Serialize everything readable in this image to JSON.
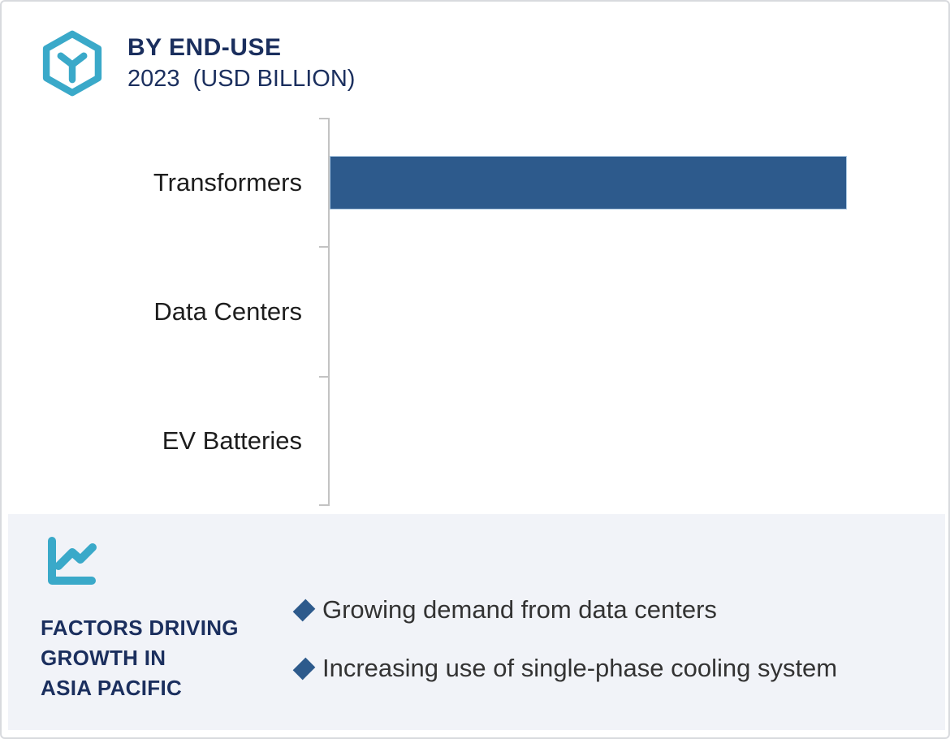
{
  "header": {
    "title": "BY END-USE",
    "subtitle": "2023  (USD BILLION)",
    "logo_icon": "hexagon-cube-icon"
  },
  "chart_data": {
    "type": "bar",
    "orientation": "horizontal",
    "title": "BY END-USE",
    "subtitle": "2023 (USD BILLION)",
    "categories": [
      "Transformers",
      "Data Centers",
      "EV Batteries"
    ],
    "values_pct_of_plot_width": [
      85.2,
      0,
      0
    ],
    "value_axis_labels_shown": false,
    "data_labels_shown": false,
    "xlabel": "",
    "ylabel": "",
    "grid": false,
    "legend": false,
    "bar_color": "#2d5a8c",
    "axis_color": "#c3c3c3"
  },
  "footer": {
    "icon": "line-chart-icon",
    "heading": "FACTORS DRIVING\nGROWTH IN\nASIA PACIFIC",
    "bullets": [
      "Growing demand from data centers",
      "Increasing use of single-phase cooling system"
    ],
    "bullet_marker": "diamond",
    "background_color": "#f1f3f8"
  },
  "colors": {
    "navy_text": "#1b2f5e",
    "teal_accent": "#3aa9c9",
    "bar_blue": "#2d5a8c",
    "panel_background": "#f1f3f8",
    "axis_gray": "#c3c3c3",
    "category_text": "#1d1d1d",
    "bullet_text": "#333333"
  }
}
